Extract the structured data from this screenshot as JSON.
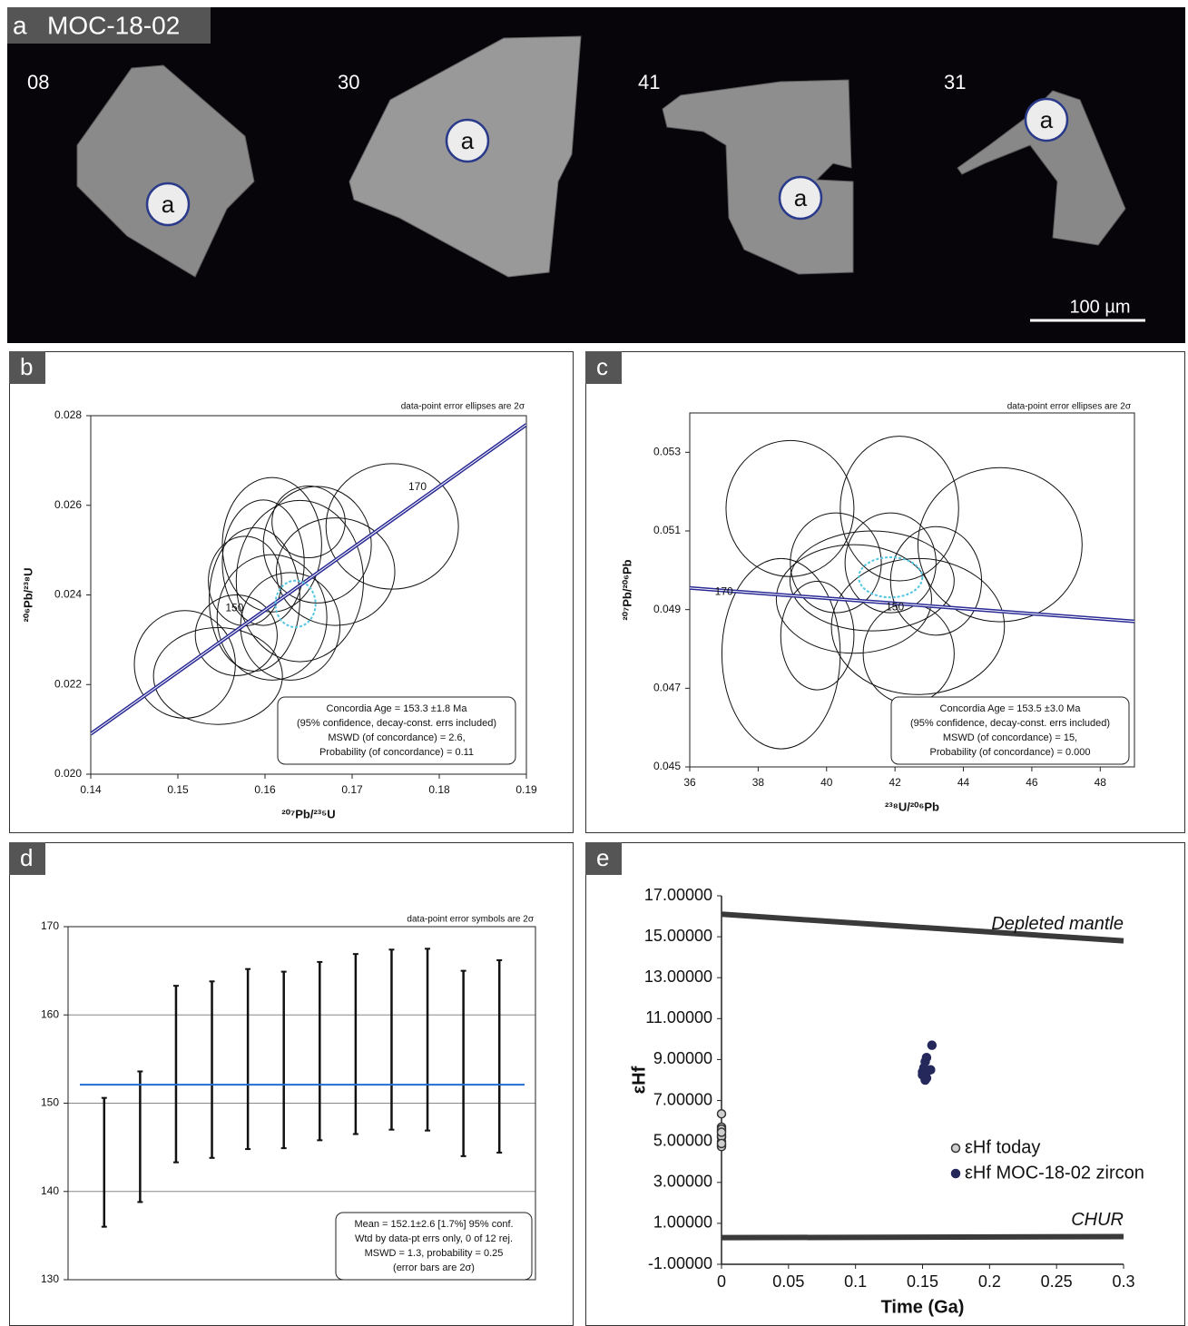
{
  "image_panel": {
    "label": "a",
    "title": "MOC-18-02",
    "grains": [
      {
        "label": "08",
        "spot": "a"
      },
      {
        "label": "30",
        "spot": "a"
      },
      {
        "label": "41",
        "spot": "a"
      },
      {
        "label": "31",
        "spot": "a"
      }
    ],
    "scale_bar": "100 µm"
  },
  "chart_data": [
    {
      "type": "concordia",
      "panel_label": "b",
      "note": "data-point error ellipses are 2σ",
      "xlabel": "²⁰⁷Pb/²³⁵U",
      "ylabel": "²⁰⁶Pb/²³⁸U",
      "xlim": [
        0.14,
        0.19
      ],
      "ylim": [
        0.02,
        0.028
      ],
      "xticks": [
        0.14,
        0.15,
        0.16,
        0.17,
        0.18,
        0.19
      ],
      "yticks": [
        {
          "value": 0.02,
          "label": "0.020"
        },
        0.022,
        0.024,
        0.026,
        0.028
      ],
      "ellipses": {
        "x": [
          0.1546,
          0.1508,
          0.1746,
          0.164,
          0.1608,
          0.1588,
          0.166,
          0.1629,
          0.1567,
          0.1681,
          0.1608,
          0.1598,
          0.165,
          0.1577
        ],
        "y": [
          0.02219,
          0.02245,
          0.02553,
          0.02431,
          0.02512,
          0.0239,
          0.02512,
          0.0233,
          0.0231,
          0.02452,
          0.0235,
          0.02472,
          0.02563,
          0.02431
        ],
        "x_err": [
          0.0074,
          0.0058,
          0.0076,
          0.0073,
          0.0057,
          0.0052,
          0.0062,
          0.0057,
          0.0047,
          0.0068,
          0.0063,
          0.0047,
          0.0042,
          0.0042
        ],
        "y_err": [
          0.00108,
          0.0012,
          0.0014,
          0.0018,
          0.0015,
          0.0016,
          0.0013,
          0.0012,
          0.0009,
          0.0012,
          0.0014,
          0.0014,
          0.0008,
          0.001
        ]
      },
      "concordia": {
        "x": [
          0.14,
          0.19
        ],
        "y": [
          0.0209,
          0.0278
        ],
        "color": "#2b2b96"
      },
      "age_ticks": {
        "ages": [
          150,
          170
        ],
        "x": [
          0.1565,
          0.1775
        ],
        "y": [
          0.0237,
          0.0264
        ]
      },
      "age_ellipse": {
        "x": 0.1635,
        "y": 0.0238,
        "x_err": 0.0023,
        "y_err": 0.00052,
        "color": "#55c6e0"
      },
      "result_box": [
        "Concordia Age = 153.3 ±1.8 Ma",
        "(95% confidence, decay-const. errs included)",
        "MSWD (of concordance) = 2.6,",
        "Probability (of concordance) = 0.11"
      ]
    },
    {
      "type": "concordia",
      "panel_label": "c",
      "note": "data-point error ellipses are 2σ",
      "xlabel": "²³⁸U/²⁰⁶Pb",
      "ylabel": "²⁰⁷Pb/²⁰⁶Pb",
      "xlim": [
        36,
        49
      ],
      "ylim": [
        0.045,
        0.054
      ],
      "xticks": [
        36,
        38,
        40,
        42,
        44,
        46,
        48
      ],
      "yticks": [
        0.045,
        0.047,
        0.049,
        0.051,
        0.053
      ],
      "ellipses": {
        "x": [
          38.93,
          42.13,
          45.07,
          38.67,
          40.8,
          42.67,
          40.27,
          41.87,
          41.33,
          43.2,
          39.73,
          42.4
        ],
        "y": [
          0.05157,
          0.05157,
          0.05065,
          0.04788,
          0.04927,
          0.04857,
          0.05019,
          0.05019,
          0.04973,
          0.04973,
          0.04834,
          0.04788
        ],
        "x_err": [
          1.87,
          1.73,
          2.4,
          1.73,
          2.27,
          2.53,
          1.33,
          1.33,
          2.4,
          1.33,
          1.07,
          1.33
        ],
        "y_err": [
          0.00173,
          0.00184,
          0.00196,
          0.00242,
          0.00138,
          0.00173,
          0.00127,
          0.00127,
          0.00127,
          0.00138,
          0.00138,
          0.00127
        ]
      },
      "concordia": {
        "x": [
          36,
          49
        ],
        "y": [
          0.04955,
          0.0487
        ],
        "color": "#2b2b96"
      },
      "age_ticks": {
        "ages": [
          170,
          150
        ],
        "x": [
          37.0,
          42.0
        ],
        "y": [
          0.04945,
          0.04905
        ]
      },
      "age_ellipse": {
        "x": 41.87,
        "y": 0.04982,
        "x_err": 0.93,
        "y_err": 0.00051,
        "color": "#55c6e0"
      },
      "result_box": [
        "Concordia Age = 153.5 ±3.0 Ma",
        "(95% confidence, decay-const. errs included)",
        "MSWD (of concordance) = 15,",
        "Probability (of concordance) = 0.000"
      ]
    },
    {
      "type": "error_bar",
      "panel_label": "d",
      "note": "data-point error symbols are 2σ",
      "ylim": [
        130,
        170
      ],
      "yticks": [
        130,
        140,
        150,
        160,
        170
      ],
      "grid": true,
      "values": [
        143.3,
        146.2,
        153.3,
        153.8,
        155.0,
        154.9,
        155.9,
        156.7,
        157.2,
        157.2,
        154.5,
        155.3
      ],
      "errors": [
        7.3,
        7.4,
        10.0,
        10.0,
        10.2,
        10.0,
        10.1,
        10.2,
        10.2,
        10.3,
        10.5,
        10.9
      ],
      "color": "#111111",
      "mean": 152.1,
      "mean_color": "#1f6fd0",
      "result_box": [
        "Mean = 152.1±2.6  [1.7%]  95% conf.",
        "Wtd by data-pt errs only, 0 of 12 rej.",
        "MSWD = 1.3, probability = 0.25",
        "(error bars are 2σ)"
      ]
    },
    {
      "type": "scatter",
      "panel_label": "e",
      "xlabel": "Time (Ga)",
      "ylabel": "εHf",
      "xlim": [
        0,
        0.3
      ],
      "ylim": [
        -1,
        17
      ],
      "xticks": [
        0,
        0.05,
        0.1,
        0.15,
        0.2,
        0.25,
        0.3
      ],
      "yticks": [
        {
          "value": -1,
          "label": "-1.00000"
        },
        {
          "value": 1,
          "label": "1.00000"
        },
        {
          "value": 3,
          "label": "3.00000"
        },
        {
          "value": 5,
          "label": "5.00000"
        },
        {
          "value": 7,
          "label": "7.00000"
        },
        {
          "value": 9,
          "label": "9.00000"
        },
        {
          "value": 11,
          "label": "11.00000"
        },
        {
          "value": 13,
          "label": "13.00000"
        },
        {
          "value": 15,
          "label": "15.00000"
        },
        {
          "value": 17,
          "label": "17.00000"
        }
      ],
      "lines": [
        {
          "name": "Depleted mantle",
          "x": [
            0,
            0.3
          ],
          "y": [
            16.1,
            14.8
          ]
        },
        {
          "name": "CHUR",
          "x": [
            0,
            0.3
          ],
          "y": [
            0.3,
            0.35
          ]
        }
      ],
      "line_color": "#3a3a3a",
      "legend": "center right",
      "series": [
        {
          "name": "εHf today",
          "color": "#cfcfcf",
          "edge": "#333333",
          "x": [
            0,
            0,
            0,
            0,
            0,
            0,
            0,
            0,
            0,
            0,
            0,
            0
          ],
          "y": [
            6.35,
            5.7,
            5.5,
            5.35,
            5.2,
            5.0,
            4.85,
            4.75,
            5.6,
            5.25,
            4.9,
            5.45
          ]
        },
        {
          "name": "εHf MOC-18-02 zircon",
          "color": "#25285a",
          "edge": "#25285a",
          "x": [
            0.157,
            0.153,
            0.152,
            0.151,
            0.15,
            0.151,
            0.152,
            0.153,
            0.152,
            0.156,
            0.154,
            0.15
          ],
          "y": [
            9.7,
            9.1,
            8.9,
            8.6,
            8.4,
            8.3,
            8.2,
            8.1,
            8.0,
            8.5,
            8.45,
            8.25
          ]
        }
      ]
    }
  ]
}
